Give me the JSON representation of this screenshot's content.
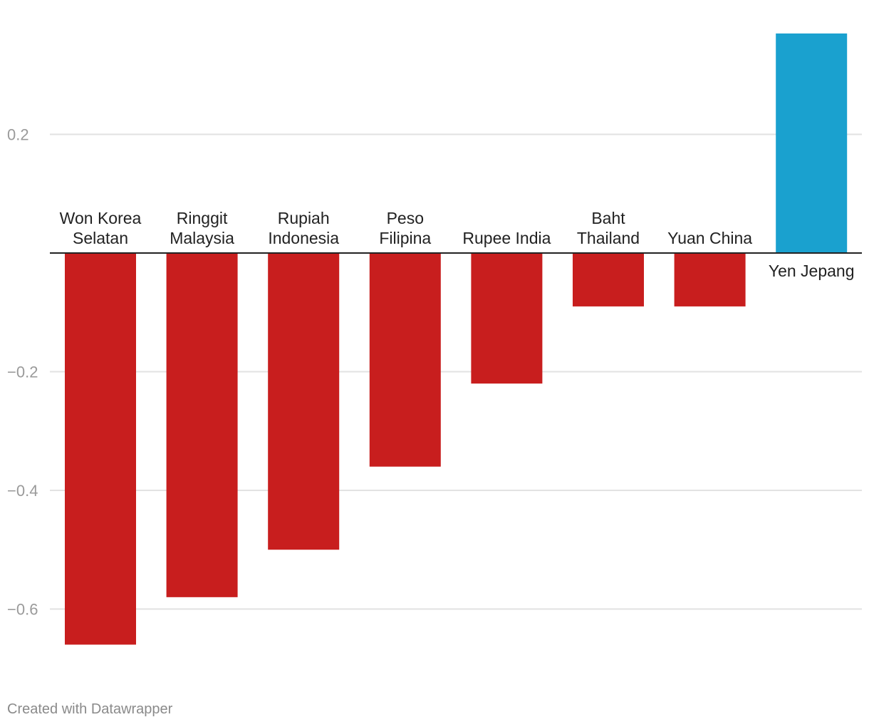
{
  "chart_data": {
    "type": "bar",
    "categories": [
      [
        "Won Korea",
        "Selatan"
      ],
      [
        "Ringgit",
        "Malaysia"
      ],
      [
        "Rupiah",
        "Indonesia"
      ],
      [
        "Peso",
        "Filipina"
      ],
      [
        "Rupee India"
      ],
      [
        "Baht",
        "Thailand"
      ],
      [
        "Yuan China"
      ],
      [
        "Yen Jepang"
      ]
    ],
    "values": [
      -0.66,
      -0.58,
      -0.5,
      -0.36,
      -0.22,
      -0.09,
      -0.09,
      0.37
    ],
    "yticks": [
      0.2,
      -0.2,
      -0.4,
      -0.6
    ],
    "ytick_labels": [
      "0.2",
      "−0.2",
      "−0.4",
      "−0.6"
    ],
    "ylim": [
      -0.68,
      0.42
    ],
    "title": "",
    "xlabel": "",
    "ylabel": "",
    "grid": true,
    "colors": {
      "negative": "#c81e1e",
      "positive": "#1aa1cf",
      "grid": "#e2e2e2",
      "baseline": "#222222"
    }
  },
  "footer": {
    "credit": "Created with Datawrapper"
  }
}
